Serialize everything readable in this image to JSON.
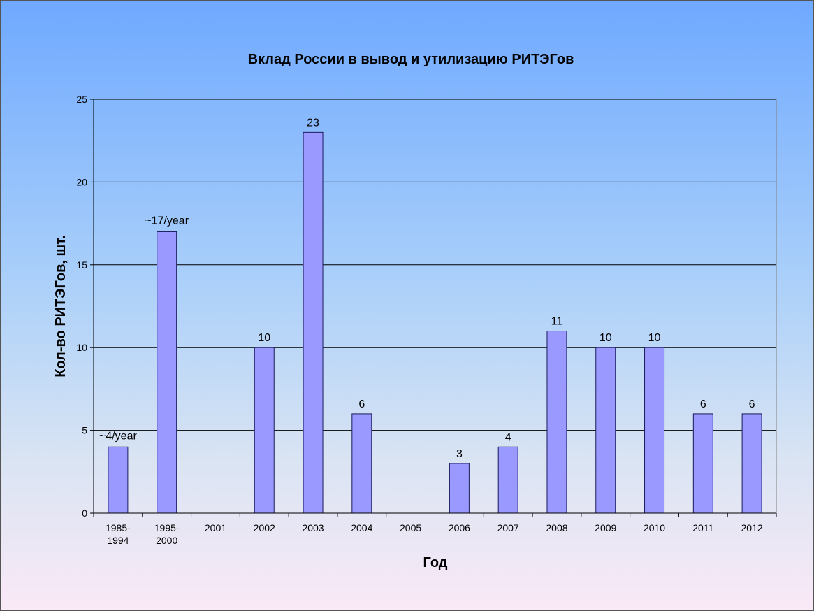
{
  "chart_data": {
    "type": "bar",
    "title": "Вклад России в вывод и утилизацию РИТЭГов",
    "xlabel": "Год",
    "ylabel": "Кол-во РИТЭГов, шт.",
    "ylim": [
      0,
      25
    ],
    "yticks": [
      0,
      5,
      10,
      15,
      20,
      25
    ],
    "grid": true,
    "legend": "none",
    "categories": [
      [
        "1985-",
        "1994"
      ],
      [
        "1995-",
        "2000"
      ],
      [
        "2001"
      ],
      [
        "2002"
      ],
      [
        "2003"
      ],
      [
        "2004"
      ],
      [
        "2005"
      ],
      [
        "2006"
      ],
      [
        "2007"
      ],
      [
        "2008"
      ],
      [
        "2009"
      ],
      [
        "2010"
      ],
      [
        "2011"
      ],
      [
        "2012"
      ]
    ],
    "values": [
      4,
      17,
      0,
      10,
      23,
      6,
      0,
      3,
      4,
      11,
      10,
      10,
      6,
      6
    ],
    "data_labels": [
      "~4/year",
      "~17/year",
      "",
      "10",
      "23",
      "6",
      "",
      "3",
      "4",
      "11",
      "10",
      "10",
      "6",
      "6"
    ],
    "colors": {
      "bar_fill": "#9999ff",
      "bar_stroke": "#1a1a5a",
      "grid": "#000000"
    }
  }
}
